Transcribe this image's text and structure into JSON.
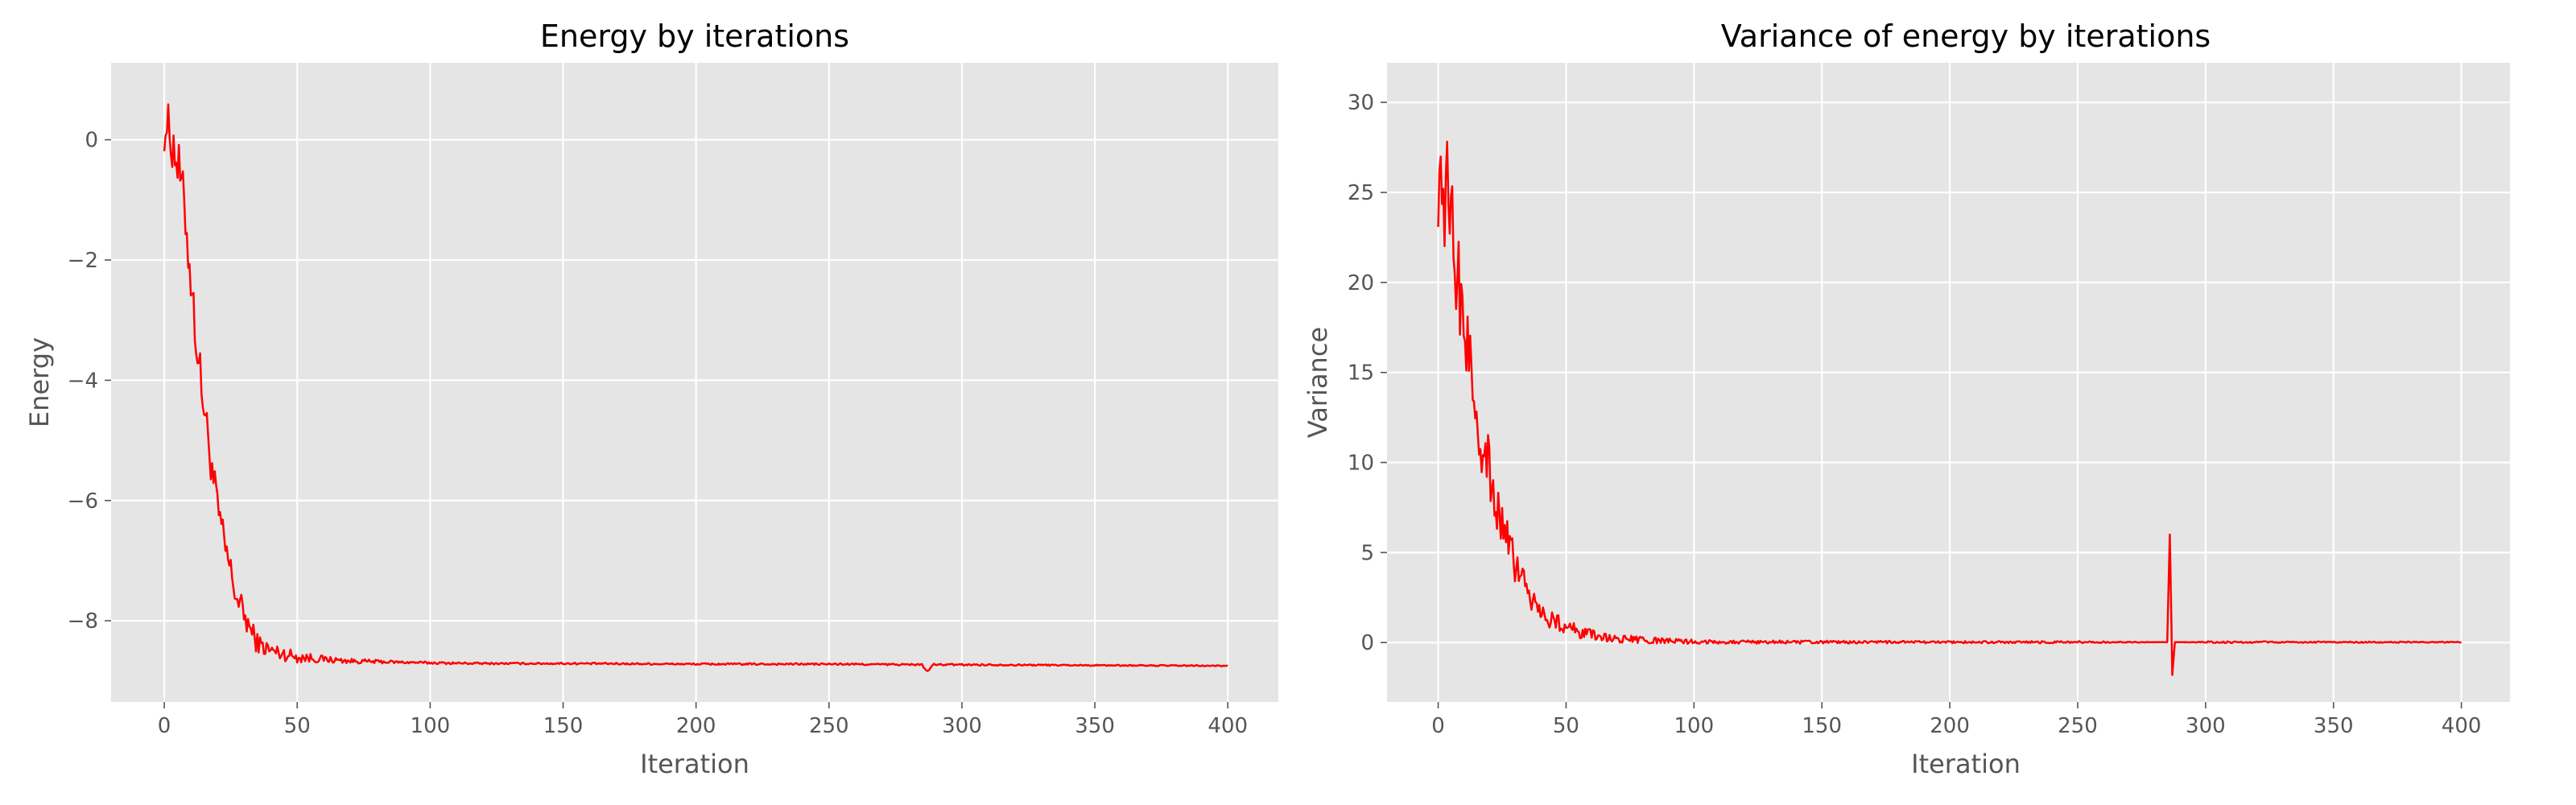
{
  "chart_data": [
    {
      "type": "line",
      "title": "Energy by iterations",
      "xlabel": "Iteration",
      "ylabel": "Energy",
      "xlim": [
        -20,
        419
      ],
      "ylim": [
        -9.35,
        1.28
      ],
      "xticks": [
        0,
        50,
        100,
        150,
        200,
        250,
        300,
        350,
        400
      ],
      "yticks": [
        0,
        -2,
        -4,
        -6,
        -8
      ],
      "ytick_labels": [
        "0",
        "−2",
        "−4",
        "−6",
        "−8"
      ],
      "grid": true,
      "line_color": "#ff0000",
      "x": [
        0,
        2,
        4,
        6,
        8,
        10,
        12,
        14,
        16,
        18,
        20,
        22,
        24,
        26,
        28,
        30,
        32,
        34,
        36,
        38,
        40,
        45,
        50,
        55,
        60,
        70,
        80,
        90,
        100,
        120,
        150,
        200,
        250,
        285,
        287,
        289,
        300,
        350,
        400
      ],
      "y": [
        0.3,
        0.1,
        -0.2,
        -0.6,
        -1.3,
        -2.3,
        -3.3,
        -4.1,
        -4.8,
        -5.5,
        -6.1,
        -6.6,
        -7.0,
        -7.4,
        -7.7,
        -7.9,
        -8.1,
        -8.3,
        -8.4,
        -8.45,
        -8.5,
        -8.55,
        -8.6,
        -8.62,
        -8.64,
        -8.67,
        -8.68,
        -8.69,
        -8.7,
        -8.71,
        -8.71,
        -8.72,
        -8.72,
        -8.73,
        -8.85,
        -8.73,
        -8.73,
        -8.74,
        -8.75
      ],
      "noise": [
        0.5,
        0.45,
        0.45,
        0.45,
        0.45,
        0.45,
        0.4,
        0.4,
        0.35,
        0.35,
        0.3,
        0.3,
        0.3,
        0.3,
        0.25,
        0.25,
        0.2,
        0.2,
        0.15,
        0.15,
        0.15,
        0.12,
        0.1,
        0.08,
        0.06,
        0.04,
        0.03,
        0.02,
        0.02,
        0.015,
        0.015,
        0.015,
        0.015,
        0.015,
        0.015,
        0.015,
        0.015,
        0.01,
        0.01
      ]
    },
    {
      "type": "line",
      "title": "Variance of energy by iterations",
      "xlabel": "Iteration",
      "ylabel": "Variance",
      "xlim": [
        -20,
        419
      ],
      "ylim": [
        -3.3,
        32.2
      ],
      "xticks": [
        0,
        50,
        100,
        150,
        200,
        250,
        300,
        350,
        400
      ],
      "yticks": [
        0,
        5,
        10,
        15,
        20,
        25,
        30
      ],
      "ytick_labels": [
        "0",
        "5",
        "10",
        "15",
        "20",
        "25",
        "30"
      ],
      "grid": true,
      "line_color": "#ff0000",
      "x": [
        0,
        2,
        4,
        6,
        8,
        10,
        12,
        14,
        16,
        18,
        20,
        22,
        24,
        26,
        28,
        30,
        32,
        34,
        36,
        38,
        40,
        45,
        50,
        55,
        60,
        70,
        80,
        90,
        100,
        120,
        150,
        200,
        250,
        285,
        286,
        287,
        288,
        300,
        350,
        400
      ],
      "y": [
        27.0,
        25.5,
        24.0,
        22.0,
        20.0,
        18.0,
        16.0,
        14.0,
        12.3,
        10.8,
        9.5,
        8.2,
        7.0,
        6.0,
        5.2,
        4.4,
        3.7,
        3.1,
        2.6,
        2.1,
        1.7,
        1.2,
        0.9,
        0.6,
        0.4,
        0.2,
        0.12,
        0.08,
        0.05,
        0.03,
        0.02,
        0.02,
        0.02,
        0.02,
        6.0,
        -1.8,
        0.02,
        0.02,
        0.02,
        0.02
      ],
      "noise": [
        4.0,
        3.5,
        3.5,
        3.0,
        3.0,
        2.8,
        2.6,
        2.4,
        2.2,
        2.0,
        1.8,
        1.6,
        1.4,
        1.2,
        1.1,
        1.0,
        0.9,
        0.8,
        0.7,
        0.6,
        0.6,
        0.5,
        0.45,
        0.35,
        0.3,
        0.25,
        0.2,
        0.15,
        0.12,
        0.1,
        0.08,
        0.06,
        0.06,
        0.0,
        0.0,
        0.0,
        0.0,
        0.05,
        0.04,
        0.03
      ]
    }
  ]
}
